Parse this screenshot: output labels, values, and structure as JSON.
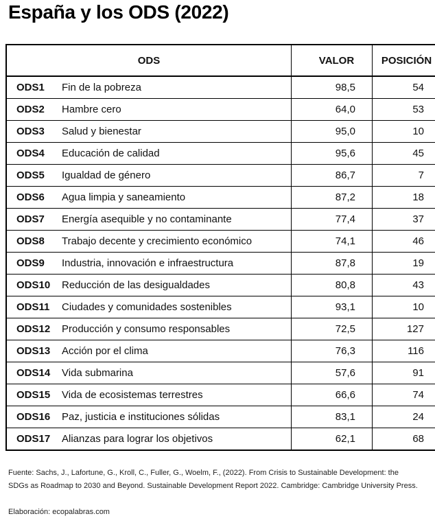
{
  "title": "España y los ODS (2022)",
  "table": {
    "headers": {
      "ods": "ODS",
      "valor": "VALOR",
      "posicion": "POSICIÓN"
    },
    "rows": [
      {
        "code": "ODS1",
        "name": "Fin de la pobreza",
        "valor": "98,5",
        "posicion": "54"
      },
      {
        "code": "ODS2",
        "name": "Hambre cero",
        "valor": "64,0",
        "posicion": "53"
      },
      {
        "code": "ODS3",
        "name": "Salud y  bienestar",
        "valor": "95,0",
        "posicion": "10"
      },
      {
        "code": "ODS4",
        "name": "Educación de calidad",
        "valor": "95,6",
        "posicion": "45"
      },
      {
        "code": "ODS5",
        "name": "Igualdad de género",
        "valor": "86,7",
        "posicion": "7"
      },
      {
        "code": "ODS6",
        "name": "Agua limpia y saneamiento",
        "valor": "87,2",
        "posicion": "18"
      },
      {
        "code": "ODS7",
        "name": "Energía asequible y no contaminante",
        "valor": "77,4",
        "posicion": "37"
      },
      {
        "code": "ODS8",
        "name": "Trabajo decente y crecimiento económico",
        "valor": "74,1",
        "posicion": "46"
      },
      {
        "code": "ODS9",
        "name": "Industria, innovación e infraestructura",
        "valor": "87,8",
        "posicion": "19"
      },
      {
        "code": "ODS10",
        "name": "Reducción de las desigualdades",
        "valor": "80,8",
        "posicion": "43"
      },
      {
        "code": "ODS11",
        "name": "Ciudades y comunidades sostenibles",
        "valor": "93,1",
        "posicion": "10"
      },
      {
        "code": "ODS12",
        "name": "Producción y consumo responsables",
        "valor": "72,5",
        "posicion": "127"
      },
      {
        "code": "ODS13",
        "name": "Acción por el clima",
        "valor": "76,3",
        "posicion": "116"
      },
      {
        "code": "ODS14",
        "name": "Vida submarina",
        "valor": "57,6",
        "posicion": "91"
      },
      {
        "code": "ODS15",
        "name": "Vida de ecosistemas terrestres",
        "valor": "66,6",
        "posicion": "74"
      },
      {
        "code": "ODS16",
        "name": "Paz, justicia e instituciones sólidas",
        "valor": "83,1",
        "posicion": "24"
      },
      {
        "code": "ODS17",
        "name": "Alianzas para lograr los objetivos",
        "valor": "62,1",
        "posicion": "68"
      }
    ]
  },
  "footer": {
    "source": "Fuente: Sachs, J., Lafortune, G., Kroll, C., Fuller, G., Woelm, F., (2022). From Crisis to Sustainable Development: the SDGs as Roadmap to 2030 and Beyond. Sustainable Development Report 2022. Cambridge: Cambridge University Press.",
    "credit": "Elaboración: ecopalabras.com"
  }
}
